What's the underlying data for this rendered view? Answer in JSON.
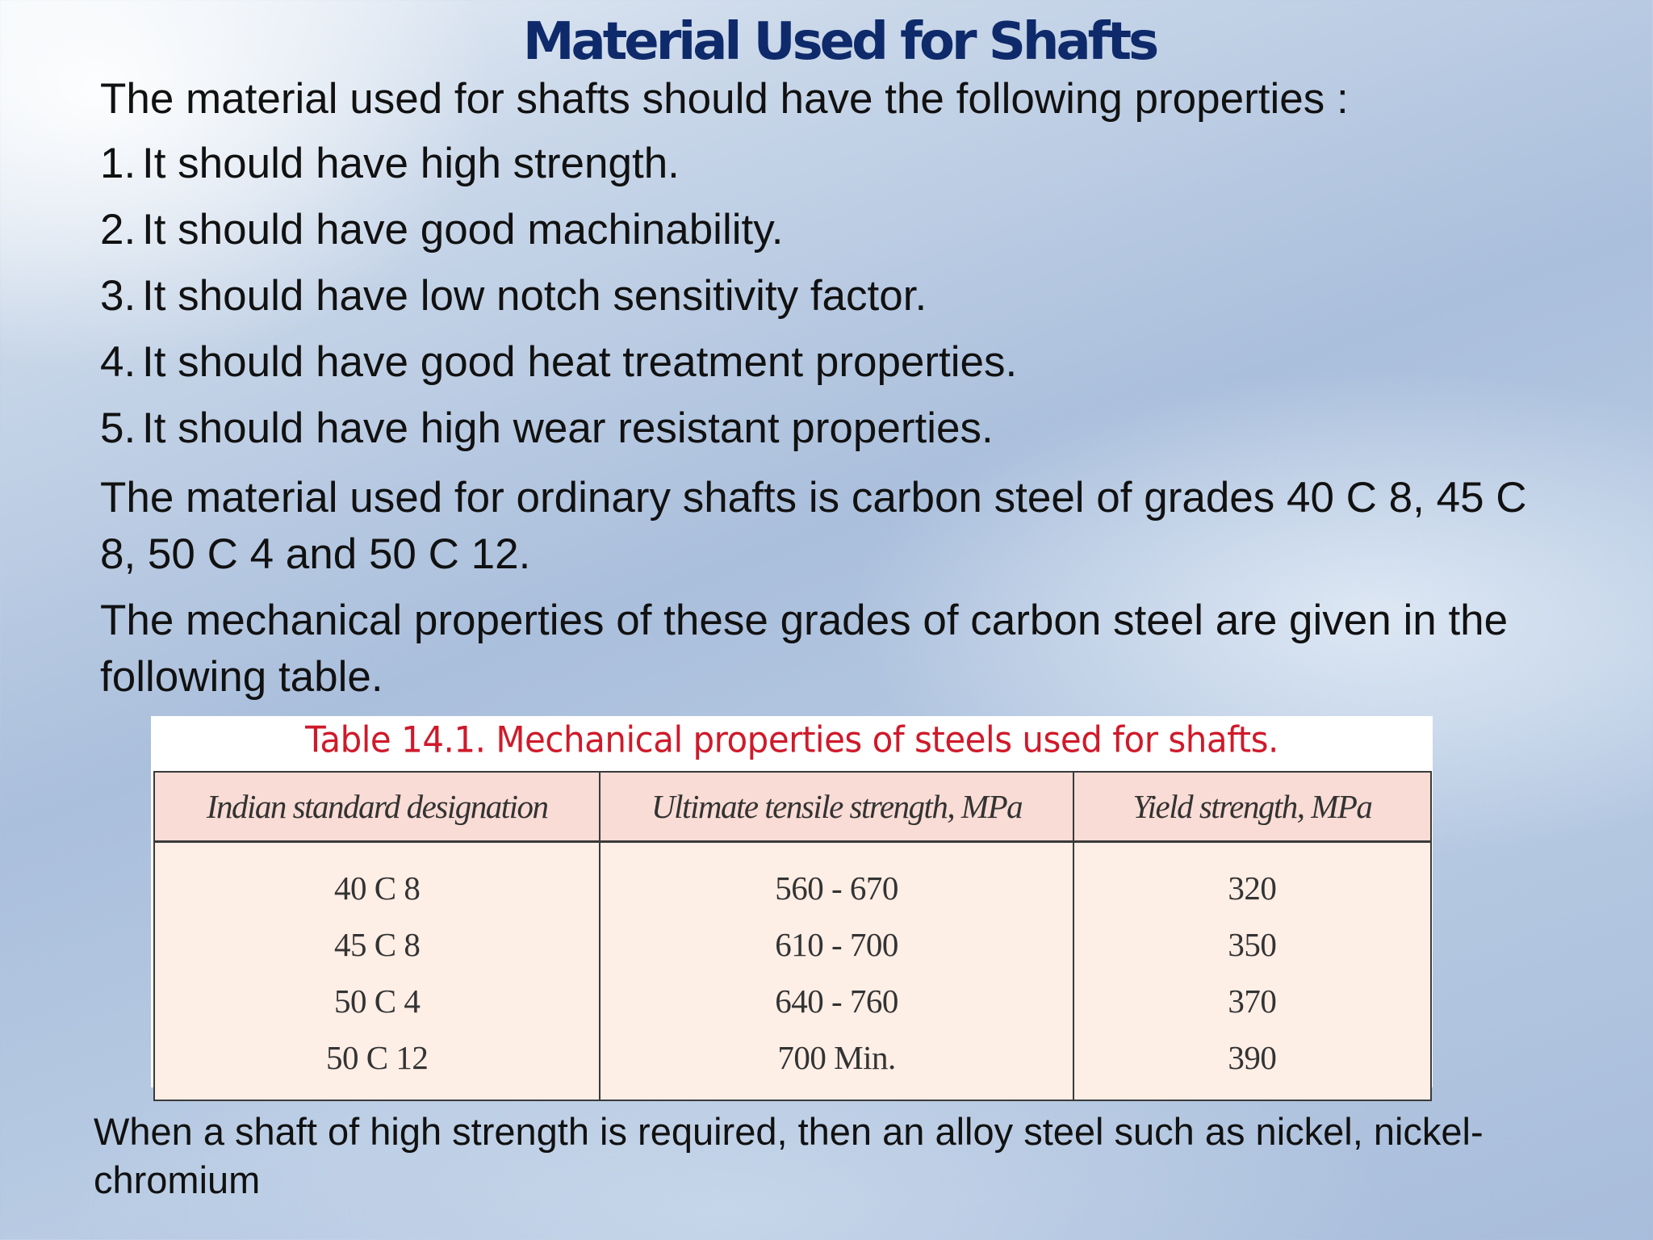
{
  "title": "Material Used for Shafts",
  "intro": "The material used for shafts should have the following properties :",
  "properties": [
    {
      "num": "1.",
      "text": "It should have high strength."
    },
    {
      "num": "2.",
      "text": "It should have good machinability."
    },
    {
      "num": "3.",
      "text": "It should have low notch sensitivity factor."
    },
    {
      "num": "4.",
      "text": "It should have good heat treatment properties."
    },
    {
      "num": "5.",
      "text": "It should have high wear resistant properties."
    }
  ],
  "paragraph_grades": "The material used for ordinary shafts is carbon steel of grades 40 C 8, 45 C 8, 50 C 4  and 50 C 12.",
  "paragraph_table_intro": "The mechanical properties of these grades of carbon steel are given in the following  table.",
  "table": {
    "caption": "Table 14.1. Mechanical properties of steels used for shafts.",
    "headers": [
      "Indian standard designation",
      "Ultimate tensile strength, MPa",
      "Yield strength, MPa"
    ],
    "rows": [
      [
        "40 C 8",
        "560 - 670",
        "320"
      ],
      [
        "45 C 8",
        "610 - 700",
        "350"
      ],
      [
        "50 C 4",
        "640 - 760",
        "370"
      ],
      [
        "50 C 12",
        "700 Min.",
        "390"
      ]
    ]
  },
  "footer": "When a shaft of high strength is required, then an alloy steel such as nickel, nickel-chromium",
  "colors": {
    "title": "#0e2a6b",
    "caption": "#cf1a2a",
    "table_header_bg": "#f9dcd5",
    "table_body_bg": "#fdeee6"
  }
}
